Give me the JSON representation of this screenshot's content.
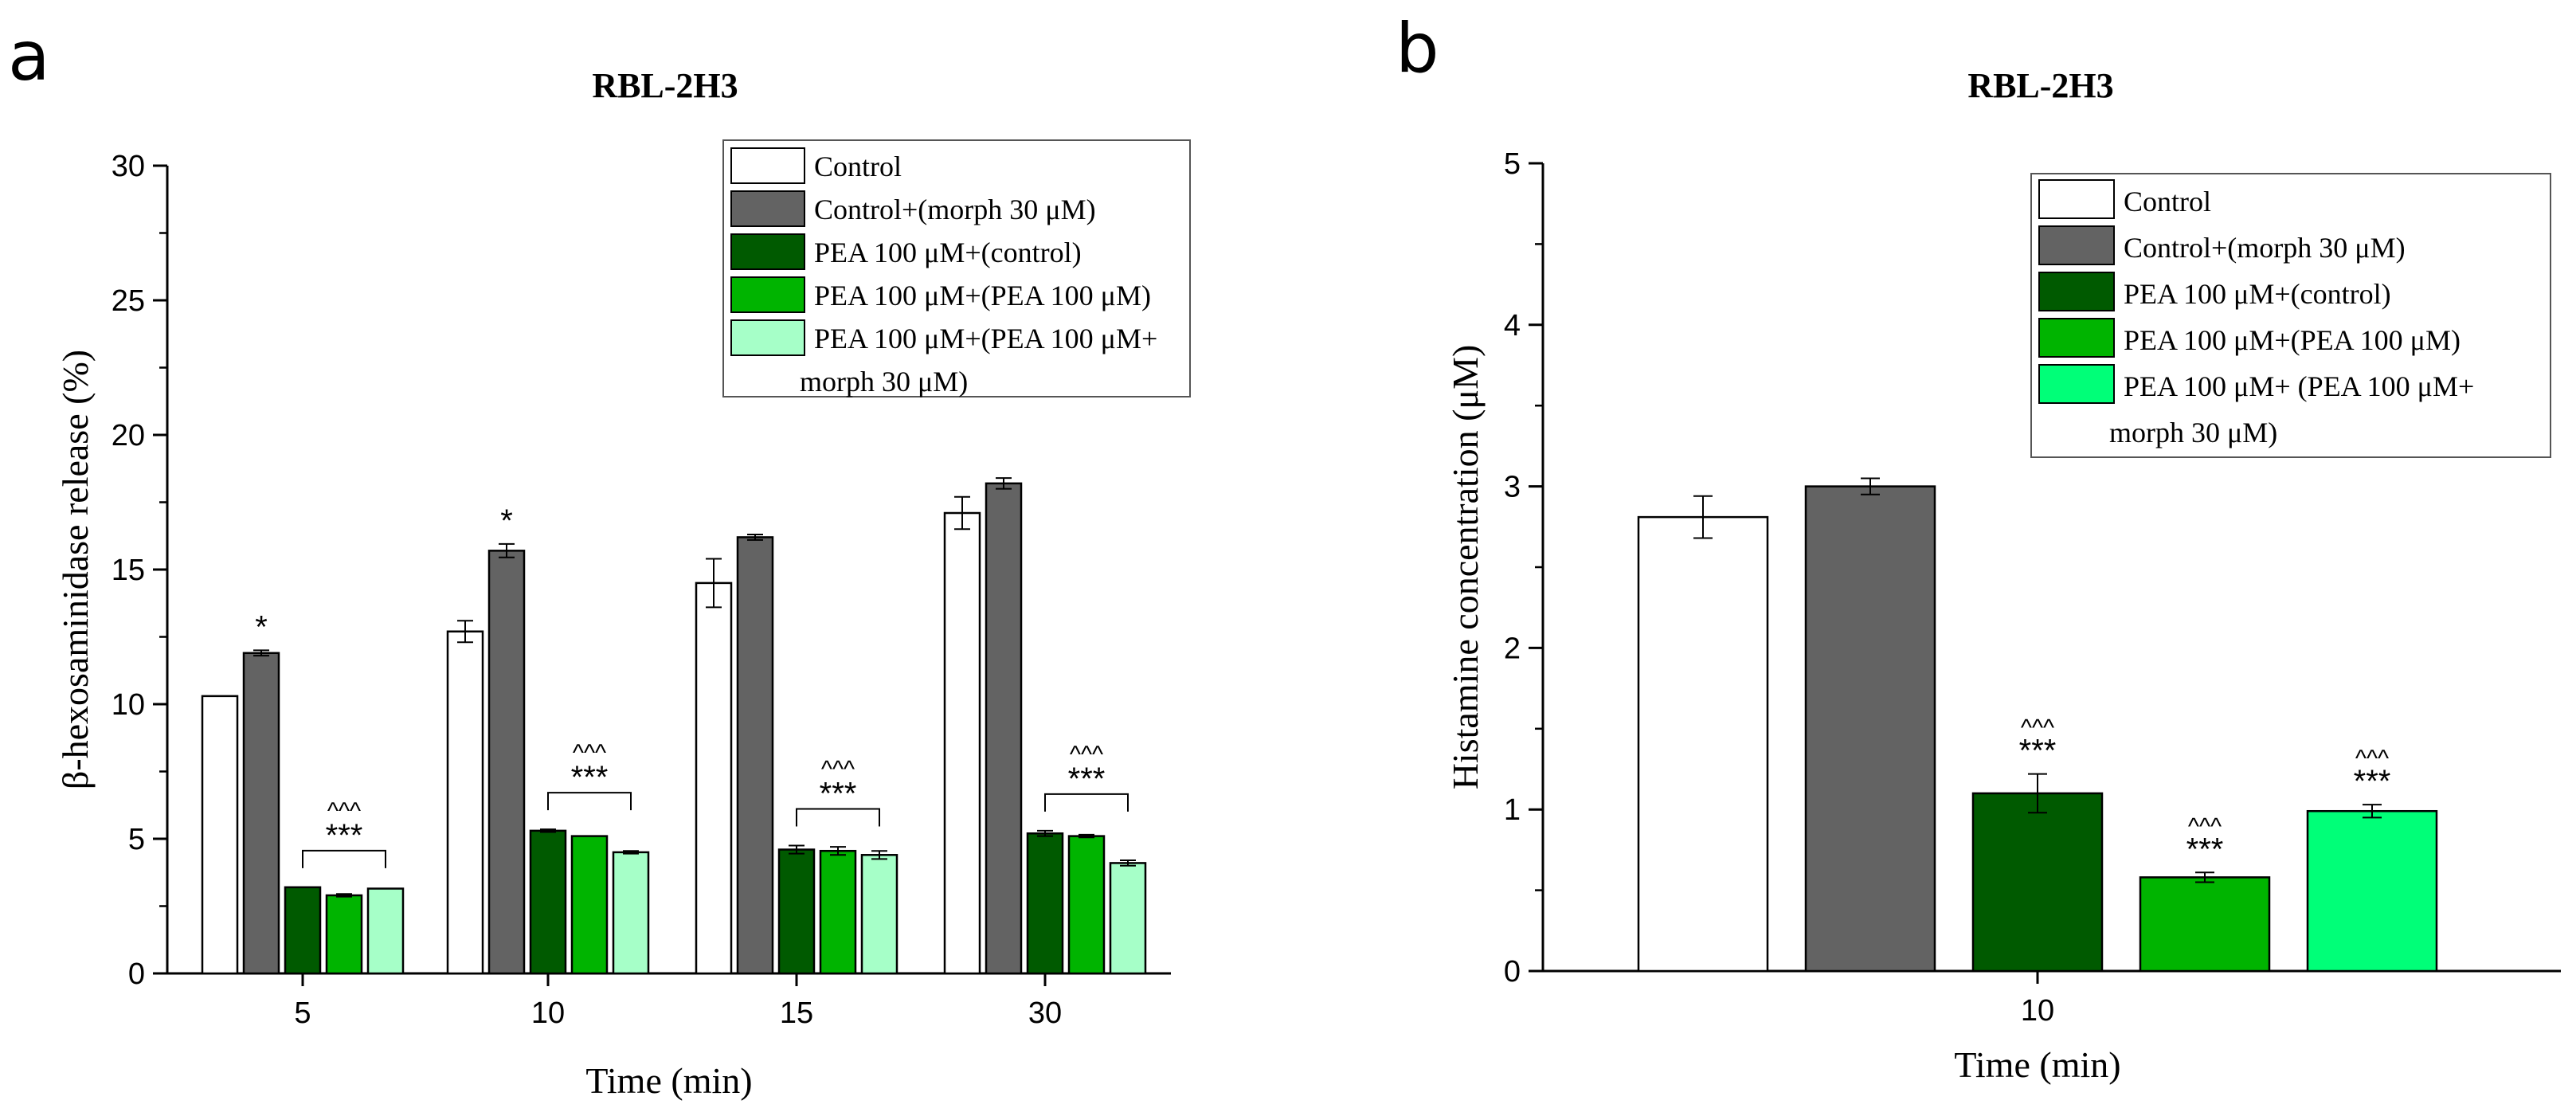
{
  "colors": {
    "control": "#ffffff",
    "control_morph": "#636363",
    "pea_control": "#005a00",
    "pea_pea": "#00b400",
    "pea_pea_morph_a": "#a6ffc8",
    "pea_pea_morph_b": "#00ff78"
  },
  "chart_data": [
    {
      "type": "bar",
      "panel": "a",
      "title": "RBL-2H3",
      "xlabel": "Time (min)",
      "ylabel": "β-hexosaminidase release (%)",
      "ylim": [
        0,
        30
      ],
      "yticks": [
        0,
        5,
        10,
        15,
        20,
        25,
        30
      ],
      "categories": [
        "5",
        "10",
        "15",
        "30"
      ],
      "series": [
        {
          "name": "Control",
          "color": "control",
          "values": [
            10.3,
            12.7,
            14.5,
            17.1
          ],
          "errors": [
            0.0,
            0.4,
            0.9,
            0.6
          ]
        },
        {
          "name": "Control+(morph 30 μM)",
          "color": "control_morph",
          "values": [
            11.9,
            15.7,
            16.2,
            18.2
          ],
          "errors": [
            0.1,
            0.25,
            0.1,
            0.2
          ]
        },
        {
          "name": "PEA 100 μM+(control)",
          "color": "pea_control",
          "values": [
            3.2,
            5.3,
            4.6,
            5.2
          ],
          "errors": [
            0.0,
            0.05,
            0.15,
            0.1
          ]
        },
        {
          "name": "PEA 100 μM+(PEA 100 μM)",
          "color": "pea_pea",
          "values": [
            2.9,
            5.1,
            4.55,
            5.1
          ],
          "errors": [
            0.05,
            0.0,
            0.15,
            0.05
          ]
        },
        {
          "name": "PEA 100 μM+(PEA 100 μM+\nmorph 30 μM)",
          "color": "pea_pea_morph_a",
          "values": [
            3.15,
            4.5,
            4.4,
            4.1
          ],
          "errors": [
            0.0,
            0.05,
            0.15,
            0.1
          ]
        }
      ],
      "annotations": [
        {
          "category": 0,
          "series": 1,
          "text": "*"
        },
        {
          "category": 1,
          "series": 1,
          "text": "*"
        },
        {
          "bracket_category": 0,
          "caret": "^^^",
          "stars": "***"
        },
        {
          "bracket_category": 1,
          "caret": "^^^",
          "stars": "***"
        },
        {
          "bracket_category": 2,
          "caret": "^^^",
          "stars": "***"
        },
        {
          "bracket_category": 3,
          "caret": "^^^",
          "stars": "***"
        }
      ],
      "legend": [
        "Control",
        "Control+(morph 30 μM)",
        "PEA 100 μM+(control)",
        "PEA 100 μM+(PEA 100 μM)",
        "PEA 100 μM+(PEA 100 μM+",
        "morph 30 μM)"
      ]
    },
    {
      "type": "bar",
      "panel": "b",
      "title": "RBL-2H3",
      "xlabel": "Time (min)",
      "ylabel": "Histamine concentration (μM)",
      "ylim": [
        0,
        5
      ],
      "yticks": [
        0,
        1,
        2,
        3,
        4,
        5
      ],
      "categories": [
        "10"
      ],
      "series": [
        {
          "name": "Control",
          "color": "control",
          "values": [
            2.81
          ],
          "errors": [
            0.13
          ]
        },
        {
          "name": "Control+(morph 30 μM)",
          "color": "control_morph",
          "values": [
            3.0
          ],
          "errors": [
            0.05
          ]
        },
        {
          "name": "PEA 100 μM+(control)",
          "color": "pea_control",
          "values": [
            1.1
          ],
          "errors": [
            0.12
          ],
          "caret": "^^^",
          "stars": "***"
        },
        {
          "name": "PEA 100 μM+(PEA 100 μM)",
          "color": "pea_pea",
          "values": [
            0.58
          ],
          "errors": [
            0.03
          ],
          "caret": "^^^",
          "stars": "***"
        },
        {
          "name": "PEA 100 μM+ (PEA 100 μM+\nmorph 30 μM)",
          "color": "pea_pea_morph_b",
          "values": [
            0.99
          ],
          "errors": [
            0.04
          ],
          "caret": "^^^",
          "stars": "***"
        }
      ],
      "legend": [
        "Control",
        "Control+(morph 30 μM)",
        "PEA 100 μM+(control)",
        "PEA 100 μM+(PEA 100 μM)",
        "PEA 100 μM+ (PEA 100 μM+",
        "morph 30 μM)"
      ]
    }
  ]
}
